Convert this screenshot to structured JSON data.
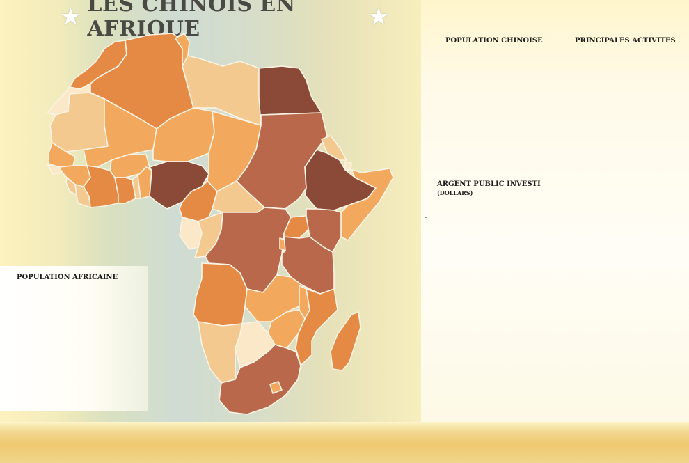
{
  "title": {
    "star_left": "★",
    "text": "LES CHINOIS EN AFRIQUE",
    "star_right": "★"
  },
  "labels": {
    "population_chinoise": "POPULATION CHINOISE",
    "principales_activites": "PRINCIPALES ACTIVITES",
    "argent_public": "ARGENT PUBLIC INVESTI",
    "argent_public_unit": "(DOLLARS)",
    "population_africaine": "POPULATION AFRICAINE"
  },
  "colors": {
    "darkest": "#8a4a37",
    "dark": "#b9684b",
    "orange": "#e48a45",
    "light_orange": "#f2a95d",
    "tan": "#f3c98f",
    "pale": "#fbe8c8",
    "border": "#fbf4e6"
  },
  "map_layer": {
    "description_colors": "country fill shades from pale to dark brown"
  }
}
